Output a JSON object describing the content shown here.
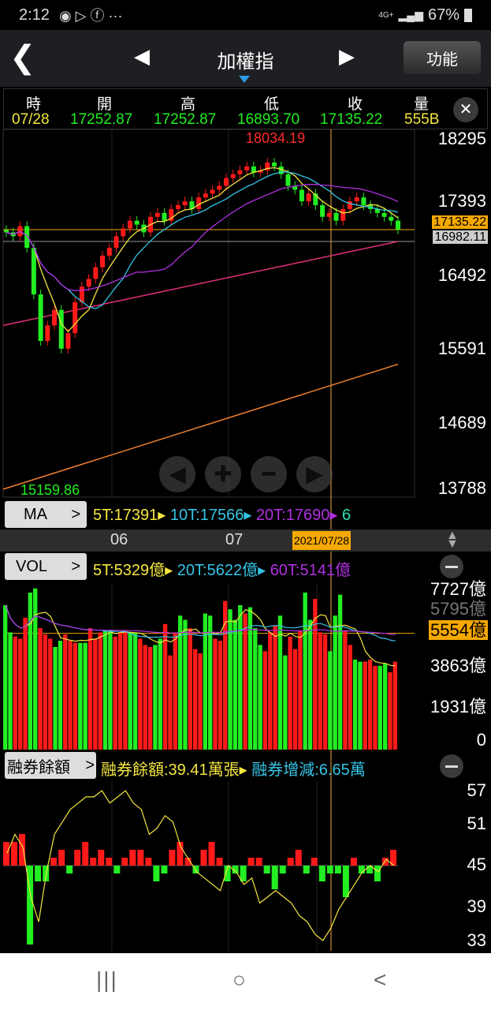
{
  "status": {
    "time": "2:12",
    "icons": [
      "chrome-icon",
      "play-icon",
      "facebook-icon",
      "more-icon"
    ],
    "more": "···",
    "network": "4G+",
    "battery": "67%"
  },
  "nav": {
    "title": "加權指",
    "func_label": "功能"
  },
  "info": {
    "headers": [
      "時",
      "開",
      "高",
      "低",
      "收",
      "量"
    ],
    "values": [
      "07/28",
      "17252.87",
      "17252.87",
      "16893.70",
      "17135.22",
      "555B"
    ]
  },
  "price": {
    "axis": [
      "18295",
      "17393",
      "16492",
      "15591",
      "14689",
      "13788"
    ],
    "max_label": "18034.19",
    "min_label": "15159.86",
    "close_tag": "17135.22",
    "ma_tag": "16982.11",
    "closes": [
      17100,
      17050,
      17180,
      16900,
      16300,
      15700,
      15900,
      16100,
      15600,
      15800,
      16200,
      16400,
      16500,
      16650,
      16800,
      16900,
      17050,
      17150,
      17250,
      17200,
      17100,
      17300,
      17350,
      17250,
      17400,
      17450,
      17500,
      17400,
      17550,
      17600,
      17650,
      17700,
      17800,
      17850,
      17900,
      17950,
      17870,
      17900,
      18000,
      17950,
      17850,
      17700,
      17650,
      17500,
      17600,
      17450,
      17300,
      17350,
      17250,
      17400,
      17500,
      17550,
      17450,
      17400,
      17350,
      17300,
      17250,
      17135.22
    ],
    "long_ma_pink": [
      15900,
      16982.11
    ],
    "long_ma_orange": [
      13788,
      15400
    ],
    "colors": {
      "up": "#ff1a1a",
      "down": "#22ee22",
      "ma5": "#f5e640",
      "ma10": "#35c4e6",
      "ma20": "#b030e0",
      "pink": "#e0307a",
      "orange": "#f08030"
    }
  },
  "ma": {
    "label": "MA",
    "items": [
      "5T:17391",
      "10T:17566",
      "20T:17690",
      "6"
    ]
  },
  "xaxis": {
    "labels": [
      "06",
      "07"
    ],
    "cursor_date": "2021/07/28"
  },
  "vol": {
    "label": "VOL",
    "items": [
      "5T:5329億",
      "20T:5622億",
      "60T:5141億"
    ],
    "axis": [
      "7727億",
      "5795億",
      "3863億",
      "1931億",
      "0"
    ],
    "tag": "5554億",
    "values": [
      6900,
      5600,
      5400,
      5300,
      6300,
      7500,
      7700,
      5800,
      5500,
      5300,
      4900,
      5200,
      5500,
      5200,
      5100,
      5100,
      5100,
      5800,
      5300,
      5600,
      5700,
      5700,
      5400,
      5600,
      5700,
      5600,
      5600,
      5300,
      5000,
      4900,
      5000,
      5300,
      6000,
      4500,
      5600,
      6400,
      6200,
      5800,
      4800,
      4600,
      6500,
      6400,
      5300,
      5200,
      7100,
      6700,
      6200,
      6900,
      6500,
      6800,
      5800,
      5000,
      4700,
      5600,
      5900,
      6400,
      4500,
      5400,
      4800,
      5700,
      7500,
      6200,
      7200,
      5600,
      5500,
      4700,
      6400,
      7400,
      5700,
      5000,
      4300,
      4200,
      4200,
      4300,
      4000,
      4000,
      4100,
      3700,
      4200
    ]
  },
  "margin": {
    "label": "融券餘額",
    "items": [
      "融券餘額:39.41萬張",
      "融券增減:6.65萬"
    ],
    "axis": [
      "57",
      "51",
      "45",
      "39",
      "33"
    ],
    "balance": [
      47,
      50,
      48,
      40,
      36,
      44,
      50,
      52,
      54,
      55,
      56,
      56,
      57,
      55,
      56,
      57,
      55,
      54,
      50,
      51,
      53,
      52,
      48,
      46,
      44,
      43,
      42,
      41,
      45,
      44,
      42,
      43,
      39,
      40,
      41,
      40,
      39,
      37,
      36,
      34,
      33,
      35,
      38,
      40,
      42,
      44,
      45,
      44,
      46,
      45
    ],
    "change": [
      3,
      3,
      4,
      -10,
      -2,
      -2,
      1,
      2,
      -1,
      2,
      3,
      1,
      2,
      1,
      -1,
      1,
      2,
      2,
      1,
      -2,
      -1,
      2,
      3,
      1,
      -1,
      2,
      3,
      1,
      -2,
      -1,
      -2,
      1,
      1,
      -1,
      -3,
      -1,
      1,
      2,
      -1,
      1,
      -2,
      -1,
      -1,
      -4,
      1,
      -1,
      -1,
      -2,
      1,
      2
    ]
  },
  "bottom_nav": {
    "recent": "|||",
    "home": "○",
    "back": "<"
  }
}
